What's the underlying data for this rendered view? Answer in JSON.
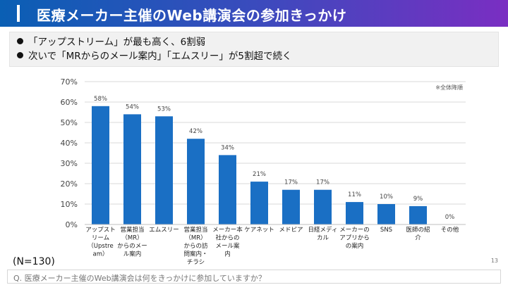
{
  "header": {
    "title": "医療メーカー主催のWeb講演会の参加きっかけ"
  },
  "summary": [
    "「アップストリーム」が最も高く、6割弱",
    "次いで「MRからのメール案内」「エムスリー」が5割超で続く"
  ],
  "note": "※全体降順",
  "n_label": "(N=130)",
  "page_number": "13",
  "question": "Q. 医療メーカー主催のWeb講演会は何をきっかけに参加していますか？",
  "colors": {
    "bar": "#1a6fc4",
    "header_start": "#0a5fb4",
    "header_end": "#7a2ec2"
  },
  "chart_data": {
    "type": "bar",
    "ylim": [
      0,
      70
    ],
    "yticks": [
      "0%",
      "10%",
      "20%",
      "30%",
      "40%",
      "50%",
      "60%",
      "70%"
    ],
    "grid": true,
    "categories": [
      [
        "アップスト",
        "リーム",
        "（Upstre",
        "am）"
      ],
      [
        "営業担当",
        "（MR）",
        "からのメー",
        "ル案内"
      ],
      [
        "エムスリー"
      ],
      [
        "営業担当",
        "（MR）",
        "からの訪",
        "問案内・",
        "チラシ"
      ],
      [
        "メーカー本",
        "社からの",
        "メール案",
        "内"
      ],
      [
        "ケアネット"
      ],
      [
        "メドピア"
      ],
      [
        "日経メディ",
        "カル"
      ],
      [
        "メーカーの",
        "アプリから",
        "の案内"
      ],
      [
        "SNS"
      ],
      [
        "医師の紹",
        "介"
      ],
      [
        "その他"
      ]
    ],
    "values": [
      58,
      54,
      53,
      42,
      34,
      21,
      17,
      17,
      11,
      10,
      9,
      0
    ],
    "value_labels": [
      "58%",
      "54%",
      "53%",
      "42%",
      "34%",
      "21%",
      "17%",
      "17%",
      "11%",
      "10%",
      "9%",
      "0%"
    ]
  }
}
